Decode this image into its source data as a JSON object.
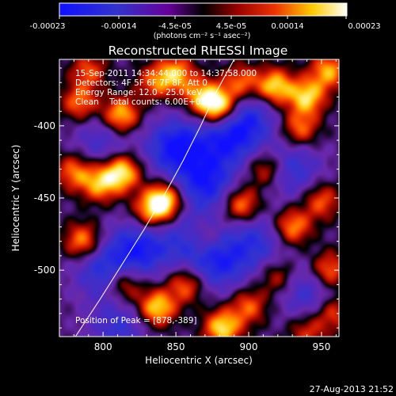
{
  "chart_data": {
    "type": "heatmap",
    "title": "Reconstructed RHESSI Image",
    "xlabel": "Heliocentric X (arcsec)",
    "ylabel": "Heliocentric Y (arcsec)",
    "xlim": [
      770,
      962
    ],
    "ylim": [
      -546,
      -354
    ],
    "x_ticks": [
      800,
      850,
      900,
      950
    ],
    "x_tick_labels": [
      "800",
      "850",
      "900",
      "950"
    ],
    "y_ticks": [
      -400,
      -450,
      -500
    ],
    "y_tick_labels": [
      "-400",
      "-450",
      "-500"
    ],
    "colorbar": {
      "range": [
        -0.00023,
        0.00023
      ],
      "tick_values": [
        -0.00023,
        -0.00014,
        -4.5e-05,
        4.5e-05,
        0.00014,
        0.00023
      ],
      "tick_labels": [
        "-0.00023",
        "-0.00014",
        "-4.5e-05",
        "4.5e-05",
        "0.00014",
        "0.00023"
      ],
      "unit_label": "(photons cm⁻² s⁻¹ asec⁻²)"
    },
    "annotations": [
      "15-Sep-2011 14:34:44.000 to 14:37:58.000",
      "Detectors: 4F 5F 6F 7F 8F, Att 0",
      "Energy Range: 12.0 - 25.0 keV",
      "Clean    Total counts: 6.00E+03",
      "Position of Peak = [878,-389]"
    ],
    "peak_position": [
      878,
      -389
    ],
    "limb_curve": [
      [
        781,
        -546
      ],
      [
        798,
        -520
      ],
      [
        813,
        -496
      ],
      [
        828,
        -472
      ],
      [
        842,
        -448
      ],
      [
        855,
        -424
      ],
      [
        867,
        -400
      ],
      [
        878,
        -376
      ],
      [
        890,
        -354
      ]
    ],
    "sources": [
      {
        "x": 880,
        "y": -387,
        "amp": 1.0
      },
      {
        "x": 868,
        "y": -380,
        "amp": 0.7
      },
      {
        "x": 895,
        "y": -370,
        "amp": 0.6
      },
      {
        "x": 812,
        "y": -393,
        "amp": 0.85
      },
      {
        "x": 784,
        "y": -384,
        "amp": 0.6
      },
      {
        "x": 790,
        "y": -362,
        "amp": 0.5
      },
      {
        "x": 813,
        "y": -432,
        "amp": 0.9
      },
      {
        "x": 798,
        "y": -440,
        "amp": 0.7
      },
      {
        "x": 780,
        "y": -432,
        "amp": 0.6
      },
      {
        "x": 842,
        "y": -452,
        "amp": 1.0
      },
      {
        "x": 832,
        "y": -460,
        "amp": 0.6
      },
      {
        "x": 786,
        "y": -480,
        "amp": 0.7
      },
      {
        "x": 850,
        "y": -364,
        "amp": 0.7
      },
      {
        "x": 835,
        "y": -370,
        "amp": 0.5
      },
      {
        "x": 918,
        "y": -373,
        "amp": 0.85
      },
      {
        "x": 940,
        "y": -380,
        "amp": 0.8
      },
      {
        "x": 955,
        "y": -362,
        "amp": 0.7
      },
      {
        "x": 935,
        "y": -402,
        "amp": 0.6
      },
      {
        "x": 912,
        "y": -430,
        "amp": 0.55
      },
      {
        "x": 895,
        "y": -455,
        "amp": 0.7
      },
      {
        "x": 930,
        "y": -470,
        "amp": 0.7
      },
      {
        "x": 950,
        "y": -452,
        "amp": 0.55
      },
      {
        "x": 955,
        "y": -500,
        "amp": 0.65
      },
      {
        "x": 920,
        "y": -505,
        "amp": 0.45
      },
      {
        "x": 857,
        "y": -510,
        "amp": 0.6
      },
      {
        "x": 837,
        "y": -526,
        "amp": 0.85
      },
      {
        "x": 815,
        "y": -510,
        "amp": 0.6
      },
      {
        "x": 882,
        "y": -540,
        "amp": 0.85
      },
      {
        "x": 900,
        "y": -525,
        "amp": 0.55
      },
      {
        "x": 958,
        "y": -530,
        "amp": 0.5
      },
      {
        "x": 940,
        "y": -543,
        "amp": 0.45
      },
      {
        "x": 870,
        "y": -478,
        "amp": 0.45
      }
    ],
    "lows": [
      {
        "x": 850,
        "y": -415,
        "amp": 0.8
      },
      {
        "x": 885,
        "y": -410,
        "amp": 0.6
      },
      {
        "x": 900,
        "y": -395,
        "amp": 0.55
      },
      {
        "x": 870,
        "y": -440,
        "amp": 0.7
      },
      {
        "x": 860,
        "y": -480,
        "amp": 0.5
      },
      {
        "x": 825,
        "y": -485,
        "amp": 0.7
      },
      {
        "x": 800,
        "y": -500,
        "amp": 0.55
      },
      {
        "x": 880,
        "y": -495,
        "amp": 0.6
      },
      {
        "x": 905,
        "y": -480,
        "amp": 0.5
      },
      {
        "x": 930,
        "y": -430,
        "amp": 0.5
      },
      {
        "x": 940,
        "y": -515,
        "amp": 0.45
      },
      {
        "x": 810,
        "y": -540,
        "amp": 0.45
      },
      {
        "x": 800,
        "y": -410,
        "amp": 0.4
      }
    ]
  },
  "footer": {
    "timestamp": "27-Aug-2013 21:52"
  }
}
